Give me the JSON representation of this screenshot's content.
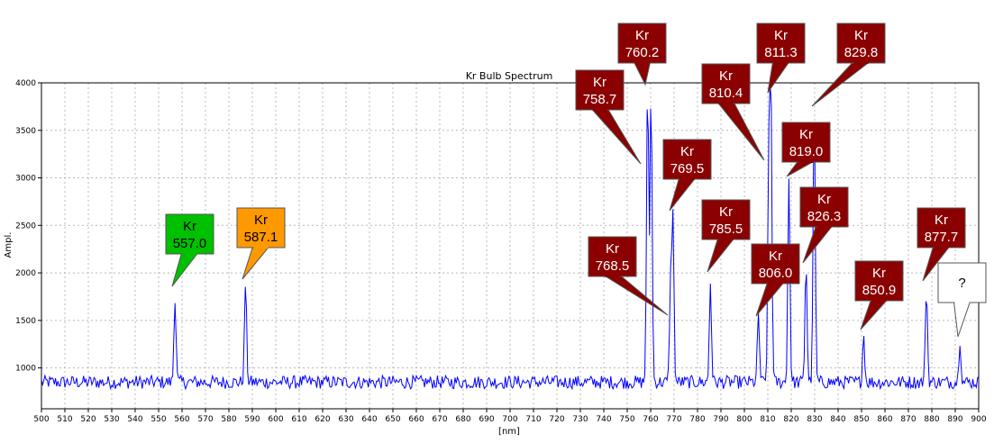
{
  "chart_data": {
    "type": "line",
    "title": "Kr Bulb Spectrum",
    "xlabel": "[nm]",
    "ylabel": "Ampl.",
    "xlim": [
      500,
      900
    ],
    "ylim": [
      570,
      4000
    ],
    "x_ticks": [
      500,
      510,
      520,
      530,
      540,
      550,
      560,
      570,
      580,
      590,
      600,
      610,
      620,
      630,
      640,
      650,
      660,
      670,
      680,
      690,
      700,
      710,
      720,
      730,
      740,
      750,
      760,
      770,
      780,
      790,
      800,
      810,
      820,
      830,
      840,
      850,
      860,
      870,
      880,
      890,
      900
    ],
    "y_ticks": [
      1000,
      1500,
      2000,
      2500,
      3000,
      3500,
      4000
    ],
    "grid": true,
    "line_color": "#0000ff",
    "baseline": 850,
    "noise": 70,
    "peaks": [
      {
        "x": 557.0,
        "y": 1750
      },
      {
        "x": 587.1,
        "y": 1900
      },
      {
        "x": 758.7,
        "y": 3970
      },
      {
        "x": 760.2,
        "y": 3960
      },
      {
        "x": 768.5,
        "y": 1870
      },
      {
        "x": 769.5,
        "y": 2560
      },
      {
        "x": 785.5,
        "y": 1900
      },
      {
        "x": 806.0,
        "y": 1560
      },
      {
        "x": 810.4,
        "y": 3000
      },
      {
        "x": 811.3,
        "y": 3950
      },
      {
        "x": 819.0,
        "y": 3000
      },
      {
        "x": 826.3,
        "y": 2120
      },
      {
        "x": 829.8,
        "y": 3740
      },
      {
        "x": 850.9,
        "y": 1350
      },
      {
        "x": 877.7,
        "y": 1850
      },
      {
        "x": 892.0,
        "y": 1300
      }
    ],
    "annotations": [
      {
        "element": "Kr",
        "wavelength": "557.0",
        "color": "#00c000",
        "text_color": "#000000"
      },
      {
        "element": "Kr",
        "wavelength": "587.1",
        "color": "#ff9900",
        "text_color": "#000000"
      },
      {
        "element": "Kr",
        "wavelength": "758.7",
        "color": "#8b0000",
        "text_color": "#ffffff"
      },
      {
        "element": "Kr",
        "wavelength": "760.2",
        "color": "#8b0000",
        "text_color": "#ffffff"
      },
      {
        "element": "Kr",
        "wavelength": "768.5",
        "color": "#8b0000",
        "text_color": "#ffffff"
      },
      {
        "element": "Kr",
        "wavelength": "769.5",
        "color": "#8b0000",
        "text_color": "#ffffff"
      },
      {
        "element": "Kr",
        "wavelength": "785.5",
        "color": "#8b0000",
        "text_color": "#ffffff"
      },
      {
        "element": "Kr",
        "wavelength": "806.0",
        "color": "#8b0000",
        "text_color": "#ffffff"
      },
      {
        "element": "Kr",
        "wavelength": "810.4",
        "color": "#8b0000",
        "text_color": "#ffffff"
      },
      {
        "element": "Kr",
        "wavelength": "811.3",
        "color": "#8b0000",
        "text_color": "#ffffff"
      },
      {
        "element": "Kr",
        "wavelength": "819.0",
        "color": "#8b0000",
        "text_color": "#ffffff"
      },
      {
        "element": "Kr",
        "wavelength": "826.3",
        "color": "#8b0000",
        "text_color": "#ffffff"
      },
      {
        "element": "Kr",
        "wavelength": "829.8",
        "color": "#8b0000",
        "text_color": "#ffffff"
      },
      {
        "element": "Kr",
        "wavelength": "850.9",
        "color": "#8b0000",
        "text_color": "#ffffff"
      },
      {
        "element": "Kr",
        "wavelength": "877.7",
        "color": "#8b0000",
        "text_color": "#ffffff"
      },
      {
        "element": "",
        "wavelength": "?",
        "color": "#ffffff",
        "text_color": "#000000"
      }
    ]
  }
}
